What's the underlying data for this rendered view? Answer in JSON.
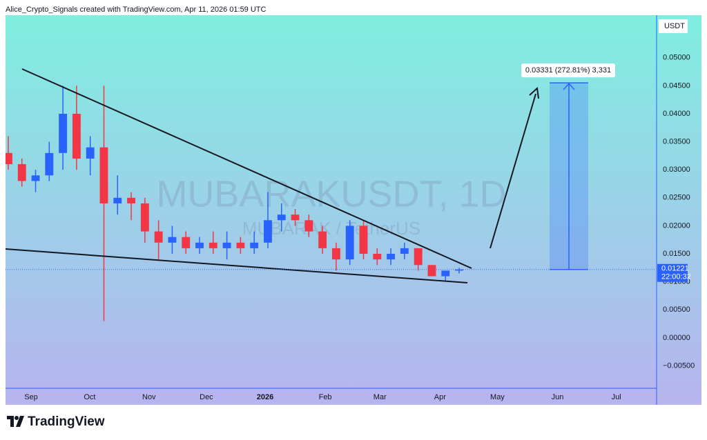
{
  "chart_data": {
    "type": "candlestick",
    "header": "Alice_Crypto_Signals created with TradingView.com, Apr 11, 2026 01:59 UTC",
    "watermark": "MUBARAKUSDT, 1D",
    "watermark_sub": "MUBARAK / TetherUS",
    "y_unit": "USDT",
    "categories": [
      null,
      null,
      null,
      null,
      null,
      null,
      null,
      null,
      null,
      null,
      null,
      null,
      null,
      null,
      null,
      null,
      null,
      null,
      null,
      null,
      null,
      null,
      null,
      null,
      null,
      null,
      null,
      null,
      null,
      null,
      null,
      null,
      null,
      null
    ],
    "open": [
      0.033,
      0.031,
      0.028,
      0.029,
      0.033,
      0.04,
      0.032,
      0.034,
      0.024,
      0.025,
      0.024,
      0.019,
      0.017,
      0.018,
      0.016,
      0.017,
      0.016,
      0.017,
      0.016,
      0.017,
      0.021,
      0.022,
      0.021,
      0.019,
      0.016,
      0.014,
      0.02,
      0.015,
      0.014,
      0.015,
      0.016,
      0.013,
      0.011,
      0.012
    ],
    "high": [
      0.036,
      0.032,
      0.03,
      0.035,
      0.045,
      0.045,
      0.036,
      0.045,
      0.029,
      0.026,
      0.025,
      0.021,
      0.02,
      0.019,
      0.018,
      0.019,
      0.019,
      0.018,
      0.019,
      0.026,
      0.024,
      0.023,
      0.022,
      0.02,
      0.017,
      0.021,
      0.021,
      0.016,
      0.016,
      0.017,
      0.016,
      0.013,
      0.012,
      0.0125
    ],
    "low": [
      0.03,
      0.027,
      0.026,
      0.028,
      0.03,
      0.03,
      0.029,
      0.003,
      0.022,
      0.021,
      0.017,
      0.014,
      0.015,
      0.015,
      0.015,
      0.015,
      0.014,
      0.015,
      0.015,
      0.016,
      0.019,
      0.02,
      0.018,
      0.015,
      0.012,
      0.013,
      0.014,
      0.013,
      0.013,
      0.014,
      0.012,
      0.011,
      0.01,
      0.0115
    ],
    "close": [
      0.031,
      0.028,
      0.029,
      0.033,
      0.04,
      0.032,
      0.034,
      0.024,
      0.025,
      0.024,
      0.019,
      0.017,
      0.018,
      0.016,
      0.017,
      0.016,
      0.017,
      0.016,
      0.017,
      0.021,
      0.022,
      0.021,
      0.019,
      0.016,
      0.014,
      0.02,
      0.015,
      0.014,
      0.015,
      0.016,
      0.013,
      0.011,
      0.012,
      0.01221
    ],
    "up_color": "#2962ff",
    "down_color": "#f23645",
    "last_price": 0.01221,
    "countdown": "22:00:32",
    "measure": {
      "change": 0.03331,
      "label": "0.03331 (272.81%) 3,331"
    },
    "xlim": [
      -0.2,
      47.4
    ],
    "xticks": [
      {
        "value": 1.67,
        "label": "Sep"
      },
      {
        "value": 5.96,
        "label": "Oct"
      },
      {
        "value": 10.3,
        "label": "Nov"
      },
      {
        "value": 14.5,
        "label": "Dec"
      },
      {
        "value": 18.8,
        "label": "2026"
      },
      {
        "value": 23.2,
        "label": "Feb"
      },
      {
        "value": 27.2,
        "label": "Mar"
      },
      {
        "value": 31.6,
        "label": "Apr"
      },
      {
        "value": 35.8,
        "label": "May"
      },
      {
        "value": 40.2,
        "label": "Jun"
      },
      {
        "value": 44.5,
        "label": "Jul"
      }
    ],
    "ylim": [
      -0.009,
      0.0576
    ],
    "yticks": [
      {
        "value": 0.05,
        "label": "0.05000"
      },
      {
        "value": 0.045,
        "label": "0.04500"
      },
      {
        "value": 0.04,
        "label": "0.04000"
      },
      {
        "value": 0.035,
        "label": "0.03500"
      },
      {
        "value": 0.03,
        "label": "0.03000"
      },
      {
        "value": 0.025,
        "label": "0.02500"
      },
      {
        "value": 0.02,
        "label": "0.02000"
      },
      {
        "value": 0.015,
        "label": "0.01500"
      },
      {
        "value": 0.01,
        "label": "0.01000"
      },
      {
        "value": 0.005,
        "label": "0.00500"
      },
      {
        "value": 0,
        "label": "0.00000"
      },
      {
        "value": -0.005,
        "label": "−0.00500"
      }
    ],
    "brand": "TradingView"
  }
}
